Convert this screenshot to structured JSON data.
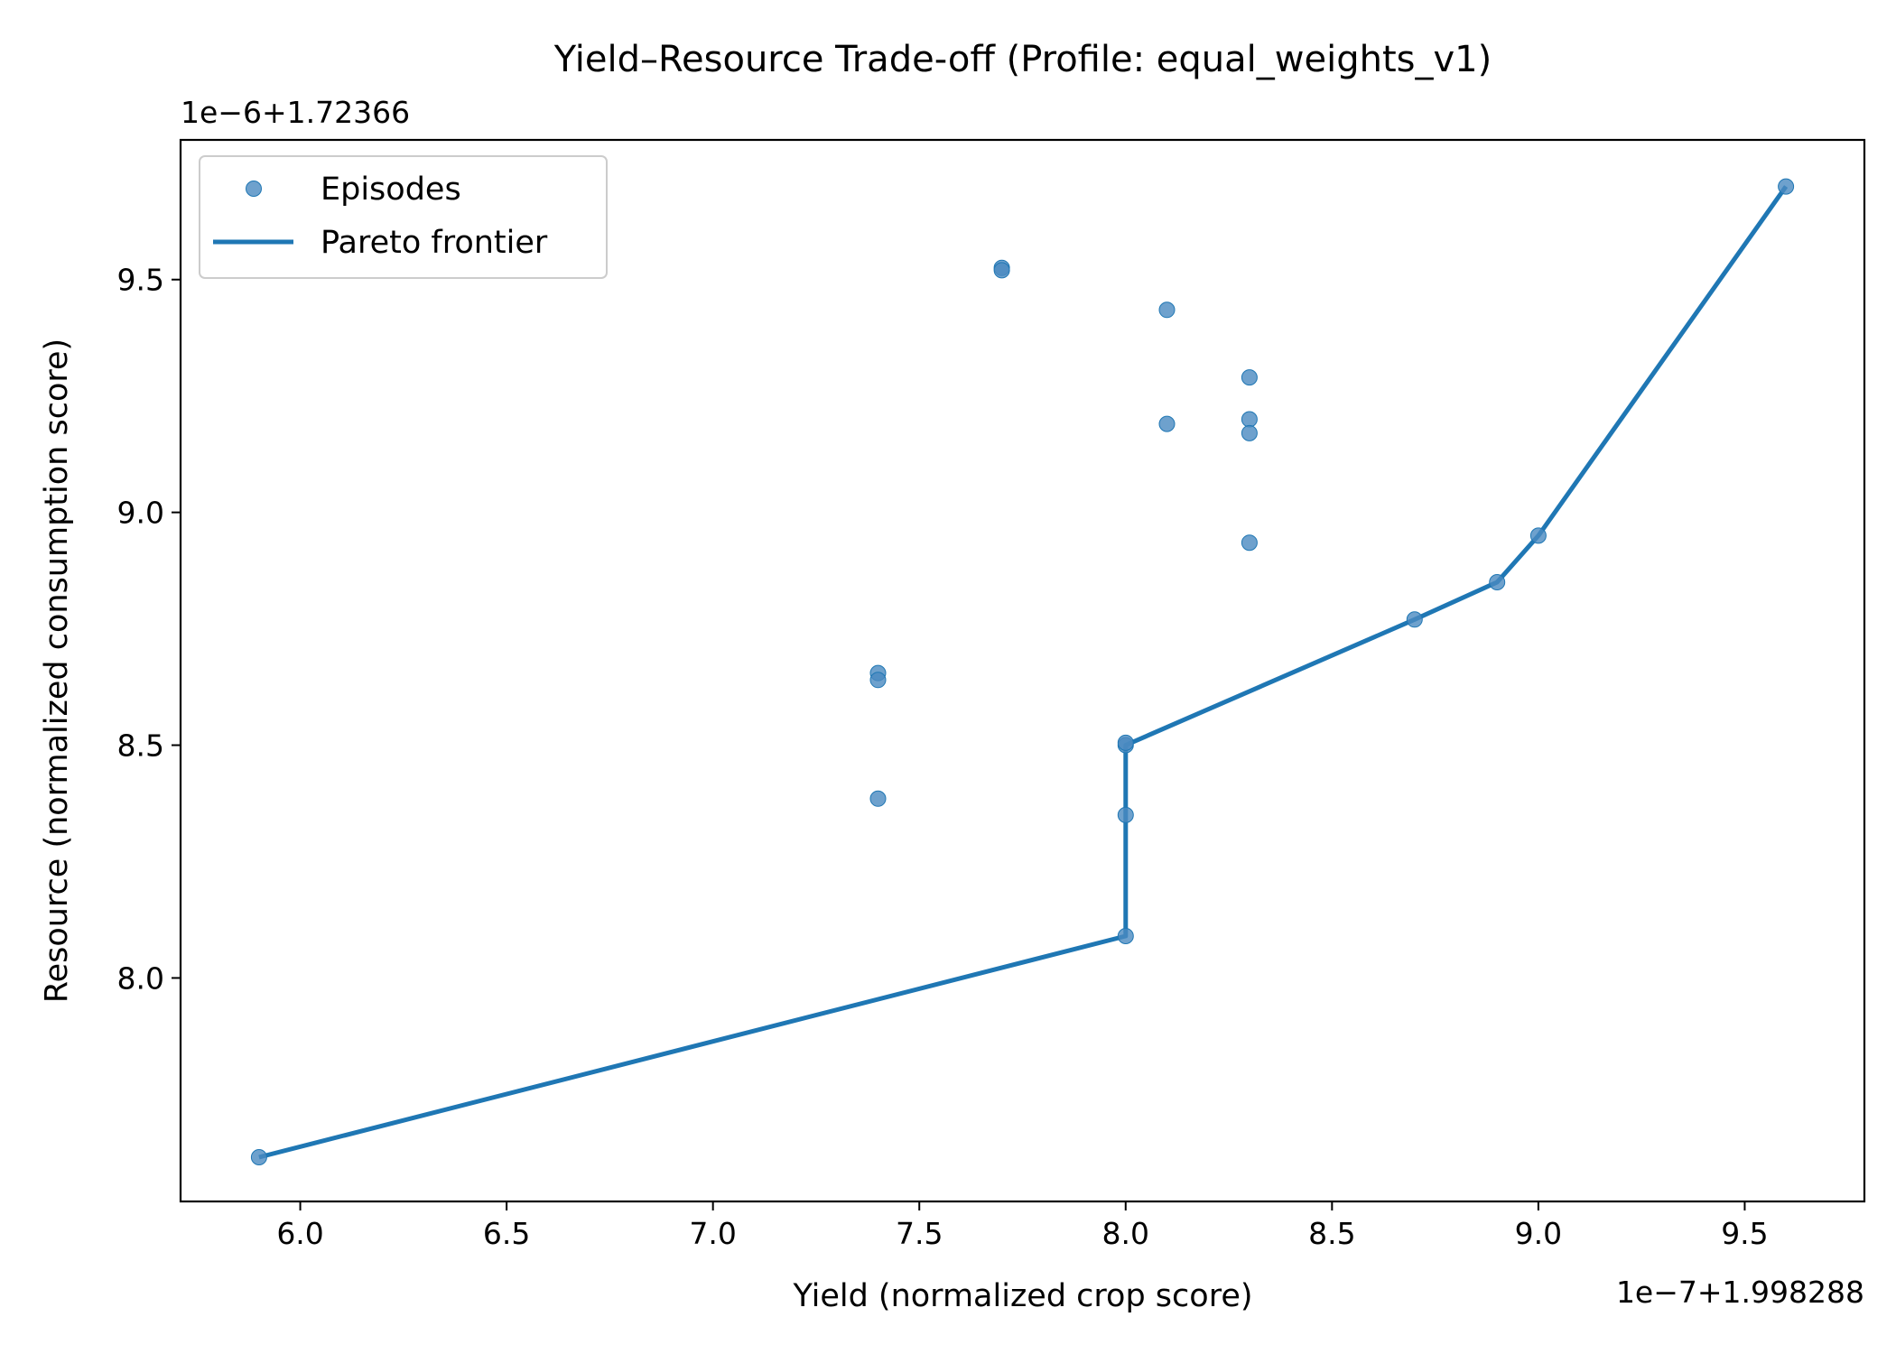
{
  "chart_data": {
    "type": "scatter",
    "title": "Yield–Resource Trade-off (Profile: equal_weights_v1)",
    "xlabel": "Yield (normalized crop score)",
    "ylabel": "Resource (normalized consumption score)",
    "x_offset_label": "1e−7+1.998288",
    "y_offset_label": "1e−6+1.72366",
    "xlim": [
      5.71,
      9.79
    ],
    "ylim": [
      7.52,
      9.8
    ],
    "x_ticks": [
      6.0,
      6.5,
      7.0,
      7.5,
      8.0,
      8.5,
      9.0,
      9.5
    ],
    "x_tick_labels": [
      "6.0",
      "6.5",
      "7.0",
      "7.5",
      "8.0",
      "8.5",
      "9.0",
      "9.5"
    ],
    "y_ticks": [
      8.0,
      8.5,
      9.0,
      9.5
    ],
    "y_tick_labels": [
      "8.0",
      "8.5",
      "9.0",
      "9.5"
    ],
    "grid": false,
    "legend_position": "top-left",
    "series": [
      {
        "name": "Episodes",
        "kind": "scatter",
        "color": "#4a8ac0",
        "points": [
          {
            "x": 5.9,
            "y": 7.615
          },
          {
            "x": 7.4,
            "y": 8.655
          },
          {
            "x": 7.4,
            "y": 8.64
          },
          {
            "x": 7.4,
            "y": 8.385
          },
          {
            "x": 7.7,
            "y": 9.525
          },
          {
            "x": 7.7,
            "y": 9.52
          },
          {
            "x": 8.0,
            "y": 8.09
          },
          {
            "x": 8.0,
            "y": 8.35
          },
          {
            "x": 8.0,
            "y": 8.5
          },
          {
            "x": 8.0,
            "y": 8.505
          },
          {
            "x": 8.1,
            "y": 9.435
          },
          {
            "x": 8.1,
            "y": 9.19
          },
          {
            "x": 8.3,
            "y": 9.29
          },
          {
            "x": 8.3,
            "y": 9.2
          },
          {
            "x": 8.3,
            "y": 9.17
          },
          {
            "x": 8.3,
            "y": 8.935
          },
          {
            "x": 8.7,
            "y": 8.77
          },
          {
            "x": 8.9,
            "y": 8.85
          },
          {
            "x": 9.0,
            "y": 8.95
          },
          {
            "x": 9.6,
            "y": 9.7
          }
        ]
      },
      {
        "name": "Pareto frontier",
        "kind": "line",
        "color": "#1f77b4",
        "points": [
          {
            "x": 5.9,
            "y": 7.615
          },
          {
            "x": 8.0,
            "y": 8.09
          },
          {
            "x": 8.0,
            "y": 8.5
          },
          {
            "x": 8.7,
            "y": 8.77
          },
          {
            "x": 8.9,
            "y": 8.85
          },
          {
            "x": 9.0,
            "y": 8.95
          },
          {
            "x": 9.6,
            "y": 9.7
          }
        ]
      }
    ]
  }
}
